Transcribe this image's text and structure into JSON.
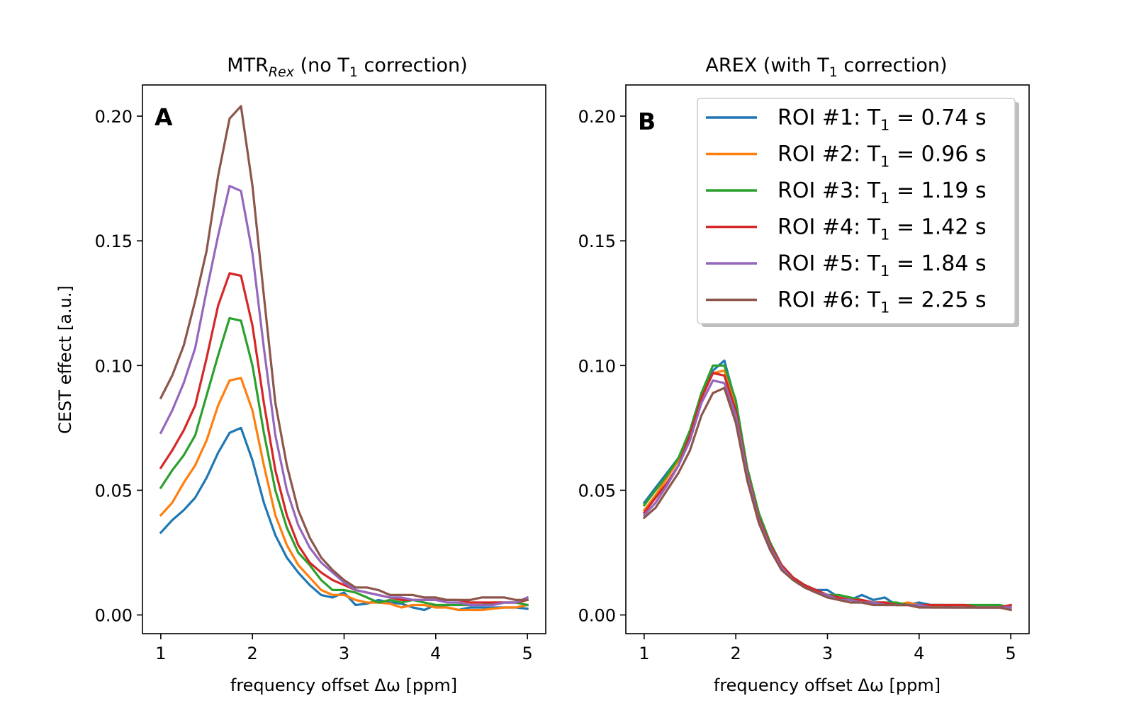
{
  "chart_data": [
    {
      "panel": "A",
      "type": "line",
      "title_main": "MTR",
      "title_sub": "Rex",
      "title_rest_1": " (no T",
      "title_rest_sub": "1",
      "title_rest_2": " correction)",
      "xlabel": "frequency offset Δω [ppm]",
      "ylabel": "CEST effect [a.u.]",
      "xlim": [
        0.8,
        5.2
      ],
      "ylim": [
        -0.0075,
        0.2125
      ],
      "xticks": [
        1,
        2,
        3,
        4,
        5
      ],
      "yticks": [
        0.0,
        0.05,
        0.1,
        0.15,
        0.2
      ],
      "ytick_labels": [
        "0.00",
        "0.05",
        "0.10",
        "0.15",
        "0.20"
      ],
      "x": [
        1.0,
        1.125,
        1.25,
        1.375,
        1.5,
        1.625,
        1.75,
        1.875,
        2.0,
        2.125,
        2.25,
        2.375,
        2.5,
        2.625,
        2.75,
        2.875,
        3.0,
        3.125,
        3.25,
        3.375,
        3.5,
        3.625,
        3.75,
        3.875,
        4.0,
        4.125,
        4.25,
        4.375,
        4.5,
        4.625,
        4.75,
        4.875,
        5.0
      ],
      "series": [
        {
          "name": "ROI #1",
          "color": "#1f77b4",
          "values": [
            0.033,
            0.038,
            0.042,
            0.047,
            0.055,
            0.065,
            0.073,
            0.075,
            0.062,
            0.045,
            0.032,
            0.023,
            0.017,
            0.012,
            0.008,
            0.007,
            0.009,
            0.004,
            0.0045,
            0.006,
            0.005,
            0.0045,
            0.003,
            0.002,
            0.004,
            0.003,
            0.002,
            0.003,
            0.003,
            0.003,
            0.003,
            0.003,
            0.0025
          ]
        },
        {
          "name": "ROI #2",
          "color": "#ff7f0e",
          "values": [
            0.04,
            0.045,
            0.053,
            0.06,
            0.07,
            0.084,
            0.094,
            0.095,
            0.082,
            0.06,
            0.04,
            0.028,
            0.02,
            0.015,
            0.01,
            0.008,
            0.008,
            0.006,
            0.005,
            0.005,
            0.0045,
            0.003,
            0.004,
            0.004,
            0.003,
            0.003,
            0.002,
            0.002,
            0.002,
            0.0025,
            0.003,
            0.003,
            0.004
          ]
        },
        {
          "name": "ROI #3",
          "color": "#2ca02c",
          "values": [
            0.051,
            0.058,
            0.064,
            0.072,
            0.088,
            0.104,
            0.119,
            0.118,
            0.1,
            0.073,
            0.05,
            0.035,
            0.025,
            0.02,
            0.014,
            0.01,
            0.01,
            0.009,
            0.007,
            0.005,
            0.006,
            0.005,
            0.006,
            0.005,
            0.004,
            0.004,
            0.004,
            0.004,
            0.004,
            0.005,
            0.005,
            0.005,
            0.004
          ]
        },
        {
          "name": "ROI #4",
          "color": "#d62728",
          "values": [
            0.059,
            0.066,
            0.074,
            0.084,
            0.103,
            0.124,
            0.137,
            0.136,
            0.116,
            0.085,
            0.058,
            0.04,
            0.028,
            0.021,
            0.017,
            0.014,
            0.012,
            0.01,
            0.009,
            0.008,
            0.007,
            0.006,
            0.006,
            0.006,
            0.006,
            0.006,
            0.006,
            0.005,
            0.005,
            0.005,
            0.005,
            0.005,
            0.006
          ]
        },
        {
          "name": "ROI #5",
          "color": "#9467bd",
          "values": [
            0.073,
            0.082,
            0.093,
            0.107,
            0.13,
            0.152,
            0.172,
            0.17,
            0.145,
            0.107,
            0.072,
            0.05,
            0.036,
            0.027,
            0.021,
            0.017,
            0.013,
            0.01,
            0.009,
            0.008,
            0.007,
            0.007,
            0.006,
            0.006,
            0.006,
            0.005,
            0.005,
            0.004,
            0.004,
            0.004,
            0.005,
            0.005,
            0.007
          ]
        },
        {
          "name": "ROI #6",
          "color": "#8c564b",
          "values": [
            0.087,
            0.096,
            0.108,
            0.126,
            0.146,
            0.176,
            0.199,
            0.204,
            0.172,
            0.128,
            0.085,
            0.06,
            0.042,
            0.031,
            0.023,
            0.018,
            0.014,
            0.011,
            0.011,
            0.01,
            0.008,
            0.008,
            0.008,
            0.007,
            0.007,
            0.006,
            0.006,
            0.006,
            0.007,
            0.007,
            0.007,
            0.006,
            0.006
          ]
        }
      ]
    },
    {
      "panel": "B",
      "type": "line",
      "title_main": "AREX (with T",
      "title_sub": "1",
      "title_rest_1": " correction)",
      "xlabel": "frequency offset Δω [ppm]",
      "ylabel": "",
      "xlim": [
        0.8,
        5.2
      ],
      "ylim": [
        -0.0075,
        0.2125
      ],
      "xticks": [
        1,
        2,
        3,
        4,
        5
      ],
      "yticks": [
        0.0,
        0.05,
        0.1,
        0.15,
        0.2
      ],
      "ytick_labels": [
        "0.00",
        "0.05",
        "0.10",
        "0.15",
        "0.20"
      ],
      "legend_position": "top-right",
      "x": [
        1.0,
        1.125,
        1.25,
        1.375,
        1.5,
        1.625,
        1.75,
        1.875,
        2.0,
        2.125,
        2.25,
        2.375,
        2.5,
        2.625,
        2.75,
        2.875,
        3.0,
        3.125,
        3.25,
        3.375,
        3.5,
        3.625,
        3.75,
        3.875,
        4.0,
        4.125,
        4.25,
        4.375,
        4.5,
        4.625,
        4.75,
        4.875,
        5.0
      ],
      "series": [
        {
          "name": "ROI #1",
          "legend_label_pre": "ROI #1: T",
          "legend_label_post": " = 0.74 s",
          "color": "#1f77b4",
          "values": [
            0.045,
            0.051,
            0.057,
            0.063,
            0.073,
            0.089,
            0.098,
            0.102,
            0.085,
            0.058,
            0.04,
            0.028,
            0.019,
            0.015,
            0.012,
            0.01,
            0.01,
            0.007,
            0.006,
            0.008,
            0.006,
            0.007,
            0.004,
            0.004,
            0.005,
            0.004,
            0.004,
            0.003,
            0.003,
            0.003,
            0.003,
            0.003,
            0.003
          ]
        },
        {
          "name": "ROI #2",
          "legend_label_pre": "ROI #2: T",
          "legend_label_post": " = 0.96 s",
          "color": "#ff7f0e",
          "values": [
            0.042,
            0.048,
            0.055,
            0.062,
            0.072,
            0.087,
            0.097,
            0.098,
            0.085,
            0.058,
            0.04,
            0.028,
            0.019,
            0.015,
            0.011,
            0.009,
            0.008,
            0.007,
            0.006,
            0.006,
            0.005,
            0.005,
            0.004,
            0.005,
            0.004,
            0.004,
            0.003,
            0.003,
            0.003,
            0.003,
            0.003,
            0.003,
            0.003
          ]
        },
        {
          "name": "ROI #3",
          "legend_label_pre": "ROI #3: T",
          "legend_label_post": " = 1.19 s",
          "color": "#2ca02c",
          "values": [
            0.044,
            0.05,
            0.056,
            0.063,
            0.074,
            0.089,
            0.1,
            0.1,
            0.086,
            0.059,
            0.041,
            0.029,
            0.02,
            0.015,
            0.011,
            0.009,
            0.008,
            0.008,
            0.007,
            0.006,
            0.005,
            0.005,
            0.005,
            0.004,
            0.004,
            0.004,
            0.004,
            0.004,
            0.004,
            0.004,
            0.004,
            0.004,
            0.003
          ]
        },
        {
          "name": "ROI #4",
          "legend_label_pre": "ROI #4: T",
          "legend_label_post": " = 1.42 s",
          "color": "#d62728",
          "values": [
            0.041,
            0.047,
            0.053,
            0.06,
            0.072,
            0.087,
            0.097,
            0.096,
            0.082,
            0.057,
            0.039,
            0.028,
            0.02,
            0.015,
            0.012,
            0.01,
            0.008,
            0.007,
            0.006,
            0.006,
            0.005,
            0.005,
            0.004,
            0.004,
            0.004,
            0.004,
            0.004,
            0.004,
            0.004,
            0.003,
            0.003,
            0.003,
            0.004
          ]
        },
        {
          "name": "ROI #5",
          "legend_label_pre": "ROI #5: T",
          "legend_label_post": " = 1.84 s",
          "color": "#9467bd",
          "values": [
            0.04,
            0.045,
            0.052,
            0.06,
            0.07,
            0.085,
            0.094,
            0.093,
            0.08,
            0.056,
            0.038,
            0.027,
            0.019,
            0.014,
            0.011,
            0.009,
            0.008,
            0.006,
            0.006,
            0.005,
            0.005,
            0.004,
            0.004,
            0.004,
            0.004,
            0.003,
            0.003,
            0.003,
            0.003,
            0.003,
            0.003,
            0.003,
            0.003
          ]
        },
        {
          "name": "ROI #6",
          "legend_label_pre": "ROI #6: T",
          "legend_label_post": " = 2.25 s",
          "color": "#8c564b",
          "values": [
            0.039,
            0.043,
            0.05,
            0.057,
            0.066,
            0.08,
            0.089,
            0.091,
            0.077,
            0.054,
            0.037,
            0.026,
            0.018,
            0.014,
            0.011,
            0.009,
            0.007,
            0.006,
            0.005,
            0.005,
            0.004,
            0.004,
            0.004,
            0.004,
            0.003,
            0.003,
            0.003,
            0.003,
            0.003,
            0.003,
            0.003,
            0.003,
            0.002
          ]
        }
      ]
    }
  ],
  "panels": {
    "a": {
      "label": "A"
    },
    "b": {
      "label": "B"
    }
  },
  "legend": {
    "sub": "1"
  }
}
